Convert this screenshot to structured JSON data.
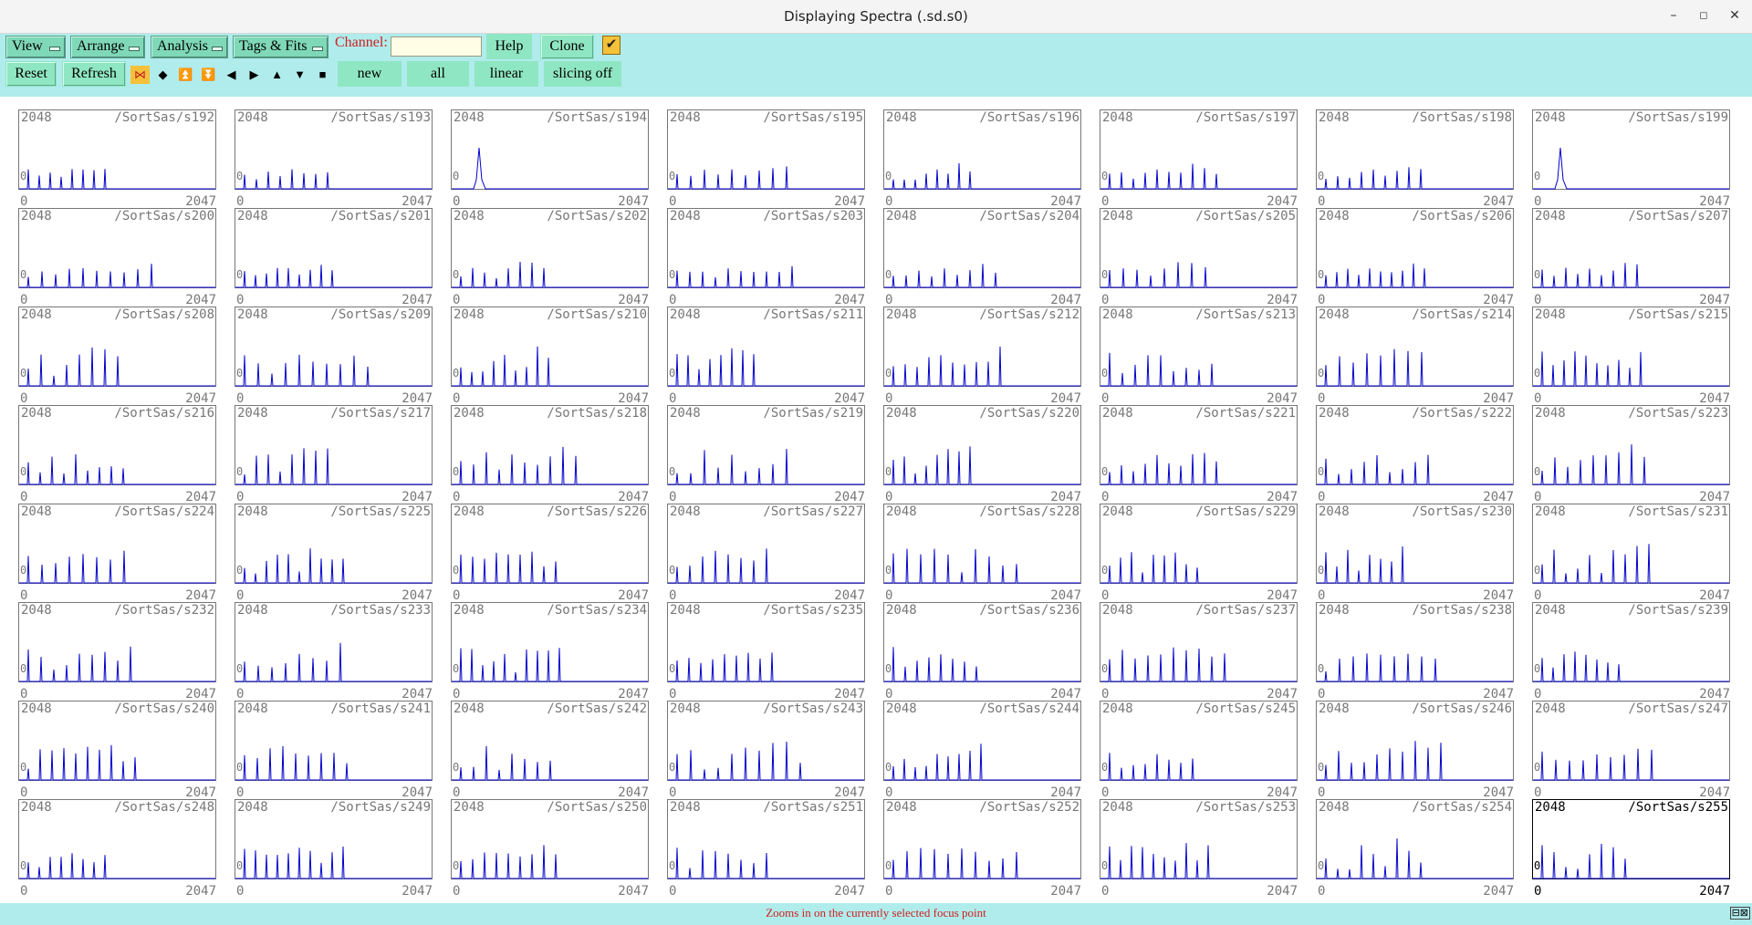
{
  "window": {
    "title": "Displaying Spectra (.sd.s0)",
    "minimize": "–",
    "maximize": "◻",
    "close": "✕"
  },
  "toolbar": {
    "menus": [
      "View",
      "Arrange",
      "Analysis",
      "Tags & Fits"
    ],
    "channel_label": "Channel:",
    "channel_value": "",
    "help": "Help",
    "clone": "Clone",
    "check": "✔",
    "reset": "Reset",
    "refresh": "Refresh",
    "nav_icons": [
      "⋈",
      "◆",
      "⏫",
      "⏬",
      "◀",
      "▶",
      "▲",
      "▼",
      "■"
    ],
    "new": "new",
    "all": "all",
    "linear": "linear",
    "slicing": "slicing off"
  },
  "colors": {
    "toolbar_bg": "#b0ecec",
    "menu_bg": "#7fd8b8",
    "button_bg": "#8fe6c2",
    "trace": "#0000cc",
    "status_text": "#d02020"
  },
  "grid": {
    "columns": 8,
    "rows": 8,
    "y_max_label": "2048",
    "y_zero_label": "0",
    "x_min_label": "0",
    "x_max_label": "2047",
    "selected": "/SortSas/s255",
    "spectra": [
      "/SortSas/s192",
      "/SortSas/s193",
      "/SortSas/s194",
      "/SortSas/s195",
      "/SortSas/s196",
      "/SortSas/s197",
      "/SortSas/s198",
      "/SortSas/s199",
      "/SortSas/s200",
      "/SortSas/s201",
      "/SortSas/s202",
      "/SortSas/s203",
      "/SortSas/s204",
      "/SortSas/s205",
      "/SortSas/s206",
      "/SortSas/s207",
      "/SortSas/s208",
      "/SortSas/s209",
      "/SortSas/s210",
      "/SortSas/s211",
      "/SortSas/s212",
      "/SortSas/s213",
      "/SortSas/s214",
      "/SortSas/s215",
      "/SortSas/s216",
      "/SortSas/s217",
      "/SortSas/s218",
      "/SortSas/s219",
      "/SortSas/s220",
      "/SortSas/s221",
      "/SortSas/s222",
      "/SortSas/s223",
      "/SortSas/s224",
      "/SortSas/s225",
      "/SortSas/s226",
      "/SortSas/s227",
      "/SortSas/s228",
      "/SortSas/s229",
      "/SortSas/s230",
      "/SortSas/s231",
      "/SortSas/s232",
      "/SortSas/s233",
      "/SortSas/s234",
      "/SortSas/s235",
      "/SortSas/s236",
      "/SortSas/s237",
      "/SortSas/s238",
      "/SortSas/s239",
      "/SortSas/s240",
      "/SortSas/s241",
      "/SortSas/s242",
      "/SortSas/s243",
      "/SortSas/s244",
      "/SortSas/s245",
      "/SortSas/s246",
      "/SortSas/s247",
      "/SortSas/s248",
      "/SortSas/s249",
      "/SortSas/s250",
      "/SortSas/s251",
      "/SortSas/s252",
      "/SortSas/s253",
      "/SortSas/s254",
      "/SortSas/s255"
    ]
  },
  "status": {
    "text": "Zooms in on the currently selected focus point",
    "icons": "⊟⊠"
  }
}
